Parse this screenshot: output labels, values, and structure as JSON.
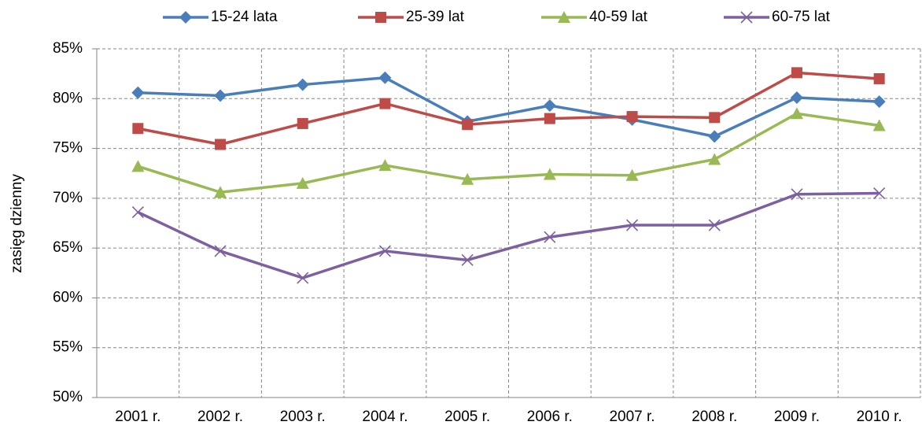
{
  "chart_data": {
    "type": "line",
    "y_label": "zasięg dzienny",
    "categories": [
      "2001 r.",
      "2002 r.",
      "2003 r.",
      "2004 r.",
      "2005 r.",
      "2006 r.",
      "2007 r.",
      "2008 r.",
      "2009 r.",
      "2010 r."
    ],
    "series": [
      {
        "name": "15-24 lata",
        "color": "#4a7ebb",
        "marker": "diamond",
        "values": [
          80.6,
          80.3,
          81.4,
          82.1,
          77.7,
          79.3,
          77.9,
          76.2,
          80.1,
          79.7
        ]
      },
      {
        "name": "25-39 lat",
        "color": "#be4b48",
        "marker": "square",
        "values": [
          77.0,
          75.4,
          77.5,
          79.5,
          77.4,
          78.0,
          78.2,
          78.1,
          82.6,
          82.0
        ]
      },
      {
        "name": "40-59 lat",
        "color": "#98b954",
        "marker": "triangle",
        "values": [
          73.2,
          70.6,
          71.5,
          73.3,
          71.9,
          72.4,
          72.3,
          73.9,
          78.5,
          77.3
        ]
      },
      {
        "name": "60-75 lat",
        "color": "#7d60a0",
        "marker": "x",
        "values": [
          68.6,
          64.7,
          62.0,
          64.7,
          63.8,
          66.1,
          67.3,
          67.3,
          70.4,
          70.5
        ]
      }
    ],
    "ylim": [
      50,
      85
    ],
    "yticks": [
      {
        "value": 50,
        "label": "50%"
      },
      {
        "value": 55,
        "label": "55%"
      },
      {
        "value": 60,
        "label": "60%"
      },
      {
        "value": 65,
        "label": "65%"
      },
      {
        "value": 70,
        "label": "70%"
      },
      {
        "value": 75,
        "label": "75%"
      },
      {
        "value": 80,
        "label": "80%"
      },
      {
        "value": 85,
        "label": "85%"
      }
    ],
    "grid": true,
    "legend": "top"
  }
}
